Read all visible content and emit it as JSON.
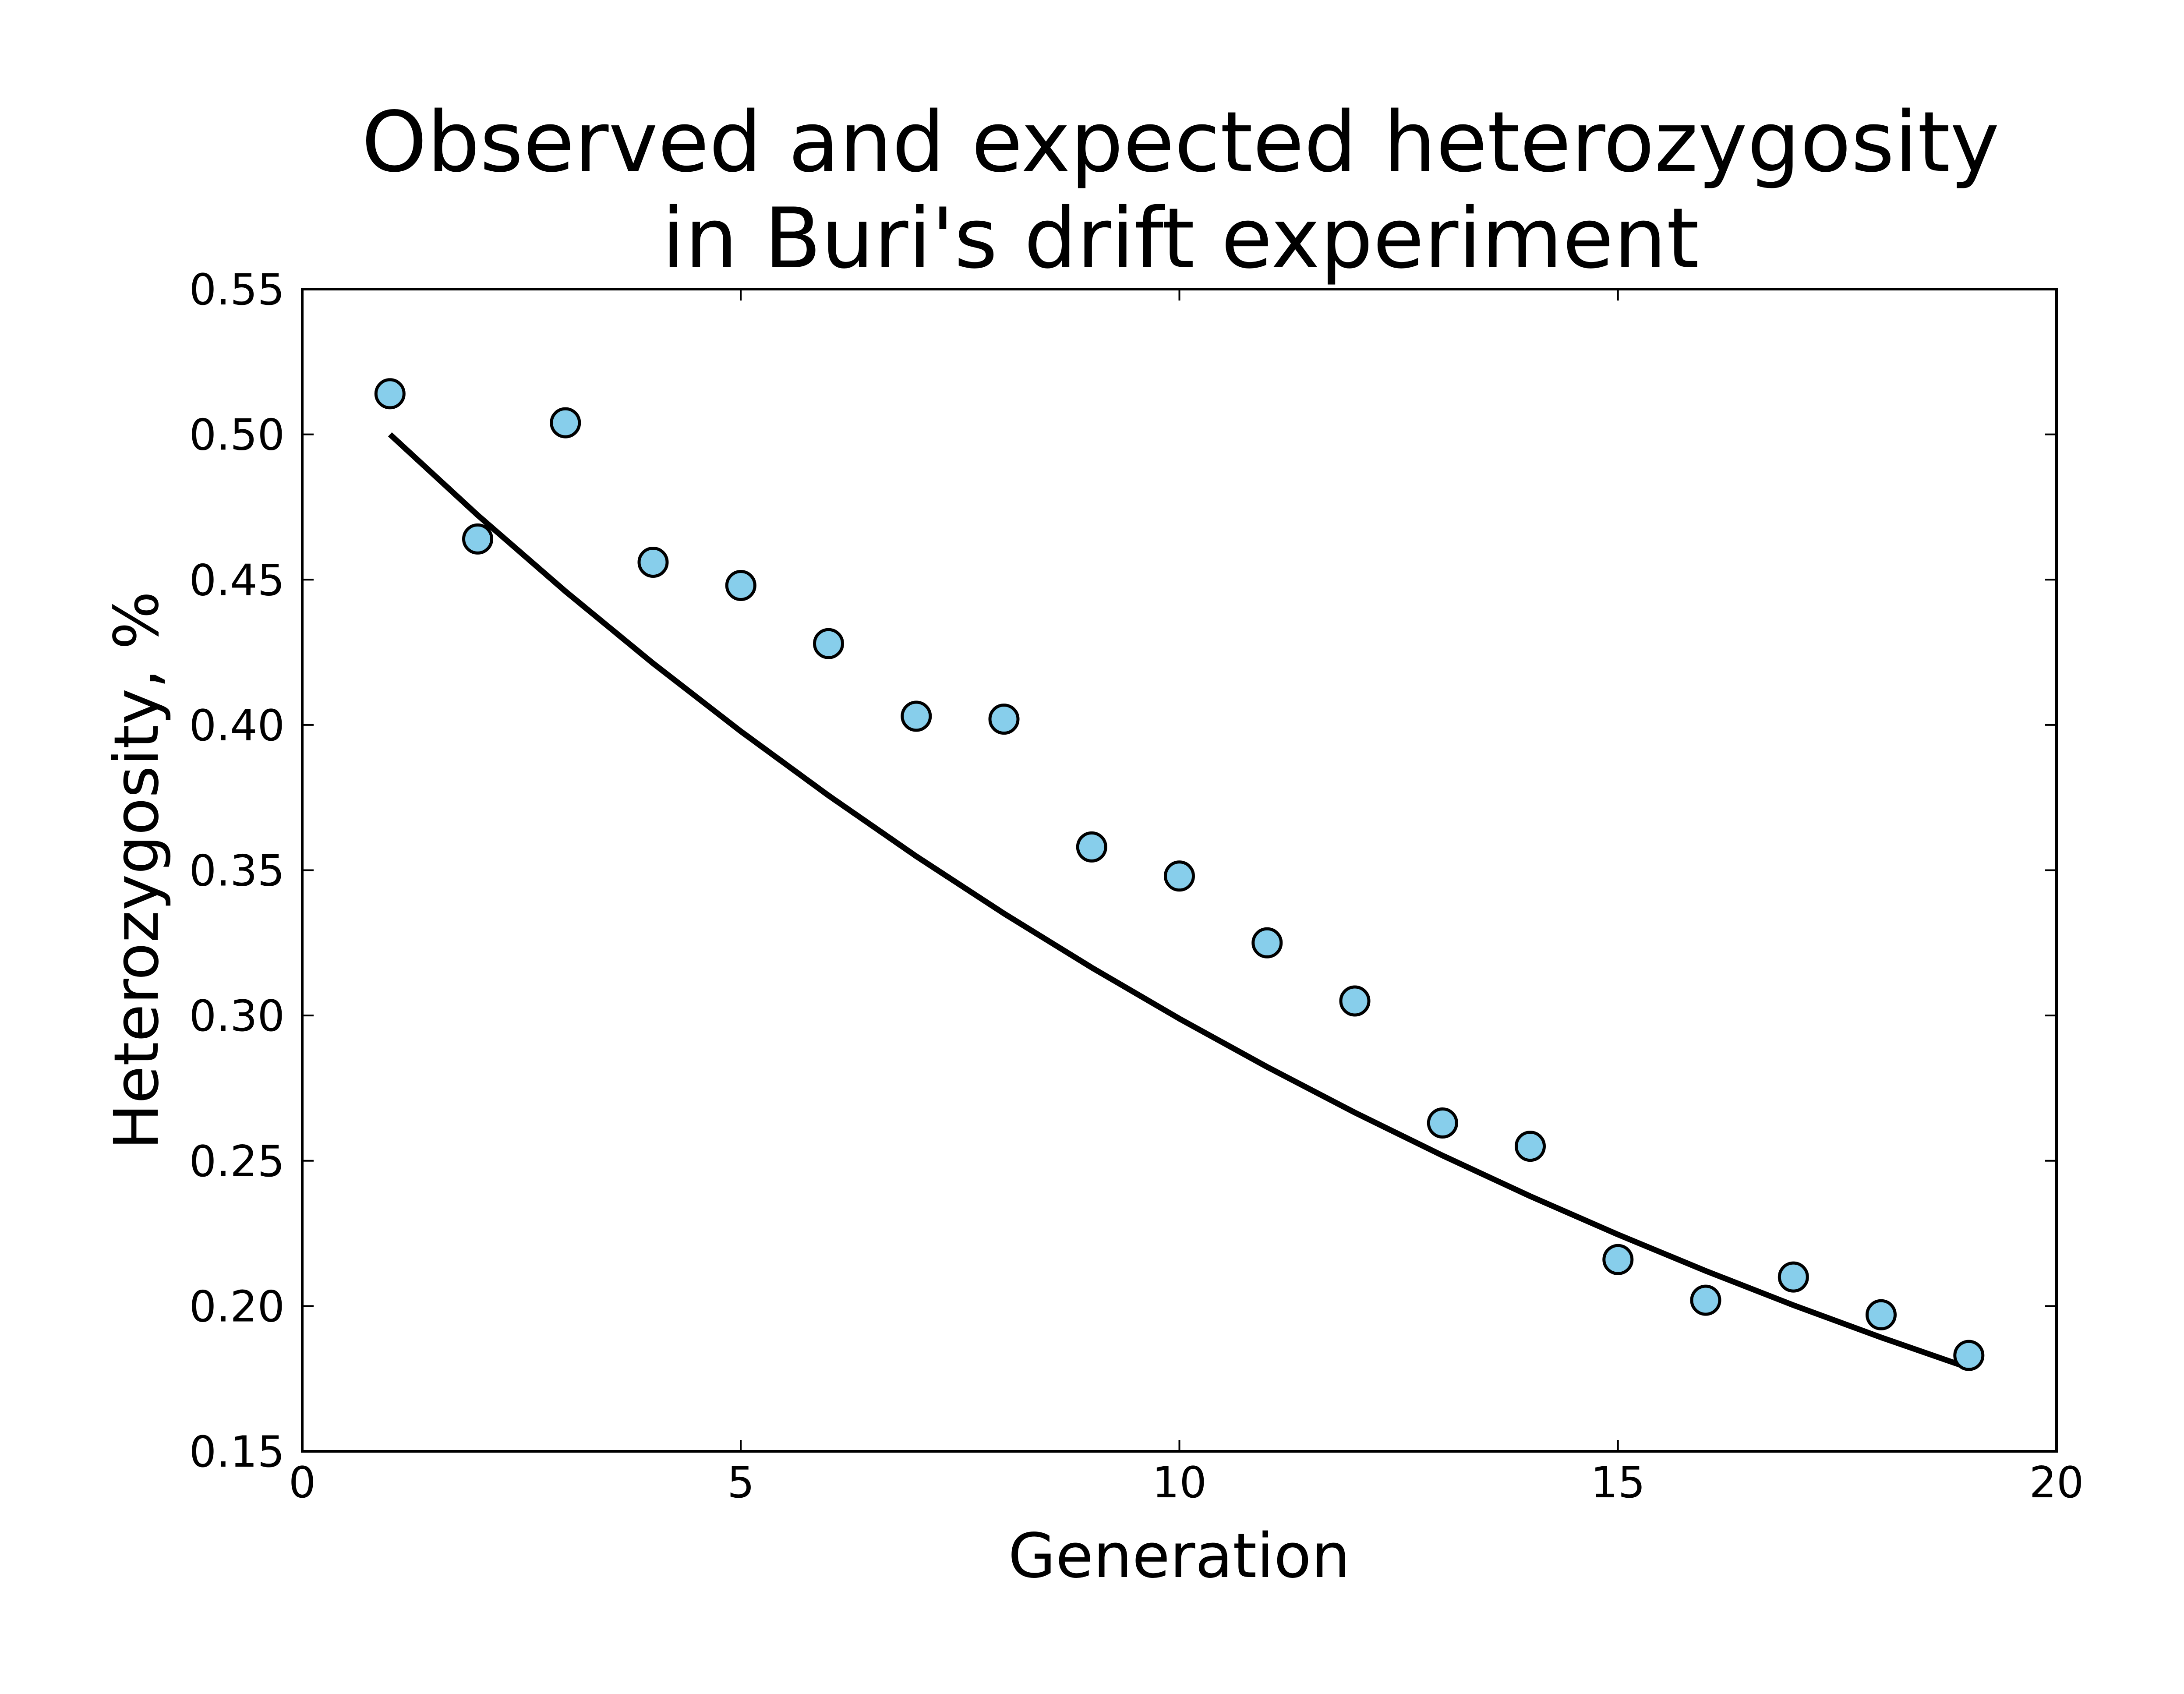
{
  "chart_data": {
    "type": "scatter",
    "title_lines": [
      "Observed and expected heterozygosity",
      "in Buri's drift experiment"
    ],
    "xlabel": "Generation",
    "ylabel": "Heterozygosity, %",
    "xlim": [
      0,
      20
    ],
    "ylim": [
      0.15,
      0.55
    ],
    "x_ticks": [
      0,
      5,
      10,
      15,
      20
    ],
    "x_tick_labels": [
      "0",
      "5",
      "10",
      "15",
      "20"
    ],
    "y_ticks": [
      0.15,
      0.2,
      0.25,
      0.3,
      0.35,
      0.4,
      0.45,
      0.5,
      0.55
    ],
    "y_tick_labels": [
      "0.15",
      "0.20",
      "0.25",
      "0.30",
      "0.35",
      "0.40",
      "0.45",
      "0.50",
      "0.55"
    ],
    "grid": false,
    "legend": "none",
    "series": [
      {
        "kind": "scatter",
        "color": "#87ceeb",
        "edge_color": "#000000",
        "x": [
          1,
          2,
          3,
          4,
          5,
          6,
          7,
          8,
          9,
          10,
          11,
          12,
          13,
          14,
          15,
          16,
          17,
          18,
          19
        ],
        "y": [
          0.514,
          0.464,
          0.504,
          0.456,
          0.448,
          0.428,
          0.403,
          0.402,
          0.358,
          0.348,
          0.325,
          0.305,
          0.263,
          0.255,
          0.216,
          0.202,
          0.21,
          0.197,
          0.183
        ]
      },
      {
        "kind": "line",
        "color": "#000000",
        "x": [
          1,
          2,
          3,
          4,
          5,
          6,
          7,
          8,
          9,
          10,
          11,
          12,
          13,
          14,
          15,
          16,
          17,
          18,
          19
        ],
        "y": [
          0.5,
          0.4722,
          0.446,
          0.4212,
          0.3978,
          0.3757,
          0.3548,
          0.3351,
          0.3165,
          0.2989,
          0.2823,
          0.2666,
          0.2518,
          0.2378,
          0.2246,
          0.2121,
          0.2003,
          0.1892,
          0.1787
        ]
      }
    ]
  }
}
